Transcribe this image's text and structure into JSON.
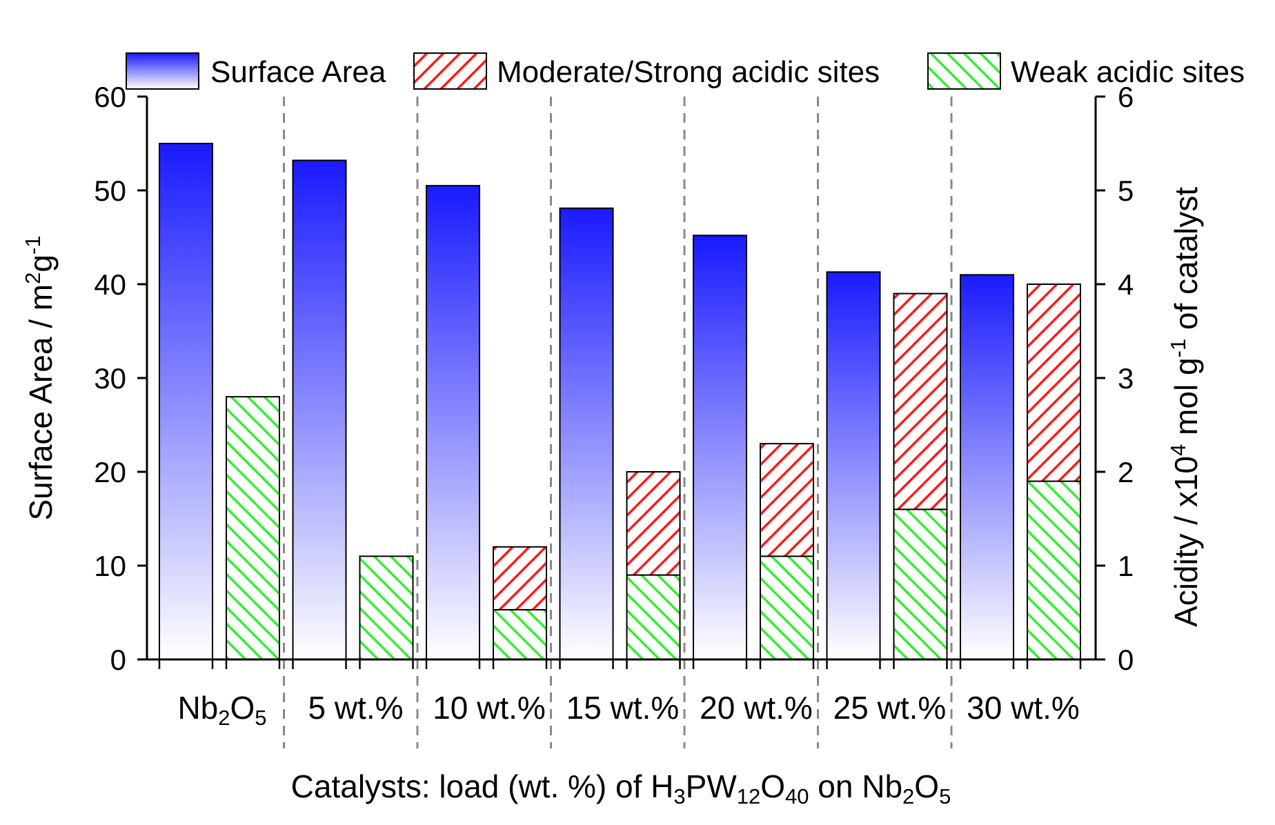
{
  "chart_data": {
    "type": "bar",
    "categories": [
      {
        "main": "Nb",
        "parts": [
          {
            "t": "Nb",
            "s": false
          },
          {
            "t": "2",
            "s": true
          },
          {
            "t": "O",
            "s": false
          },
          {
            "t": "5",
            "s": true
          }
        ]
      },
      {
        "main": "5 wt.%",
        "parts": [
          {
            "t": "5 wt.%",
            "s": false
          }
        ]
      },
      {
        "main": "10 wt.%",
        "parts": [
          {
            "t": "10 wt.%",
            "s": false
          }
        ]
      },
      {
        "main": "15 wt.%",
        "parts": [
          {
            "t": "15 wt.%",
            "s": false
          }
        ]
      },
      {
        "main": "20 wt.%",
        "parts": [
          {
            "t": "20 wt.%",
            "s": false
          }
        ]
      },
      {
        "main": "25 wt.%",
        "parts": [
          {
            "t": "25 wt.%",
            "s": false
          }
        ]
      },
      {
        "main": "30 wt.%",
        "parts": [
          {
            "t": "30 wt.%",
            "s": false
          }
        ]
      }
    ],
    "series": [
      {
        "name": "Surface Area",
        "axis": "left",
        "values": [
          55,
          53.2,
          50.5,
          48.1,
          45.2,
          41.3,
          41.0
        ]
      },
      {
        "name": "Weak acidic sites",
        "axis": "right",
        "stack_base": true,
        "values": [
          2.8,
          1.1,
          0.53,
          0.9,
          1.1,
          1.6,
          1.9
        ]
      },
      {
        "name": "Moderate/Strong acidic sites",
        "axis": "right",
        "stack_on": "Weak acidic sites",
        "values": [
          0,
          0,
          0.67,
          1.1,
          1.2,
          2.3,
          2.1
        ]
      }
    ],
    "legend": [
      {
        "name": "Surface Area",
        "swatch": "gradient"
      },
      {
        "name": "Moderate/Strong acidic sites",
        "swatch": "red-hatch"
      },
      {
        "name": "Weak acidic sites",
        "swatch": "green-hatch"
      }
    ],
    "legend_position": "top",
    "y_left": {
      "min": 0,
      "max": 60,
      "ticks": [
        "0",
        "10",
        "20",
        "30",
        "40",
        "50",
        "60"
      ],
      "title_parts": [
        {
          "t": "Surface Area / m",
          "s": ""
        },
        {
          "t": "2",
          "s": "sup"
        },
        {
          "t": "g",
          "s": ""
        },
        {
          "t": "-1",
          "s": "sup"
        }
      ]
    },
    "y_right": {
      "min": 0,
      "max": 6,
      "ticks": [
        "0",
        "1",
        "2",
        "3",
        "4",
        "5",
        "6"
      ],
      "title_parts": [
        {
          "t": "Acidity / x10",
          "s": ""
        },
        {
          "t": "4",
          "s": "sup"
        },
        {
          "t": " mol g",
          "s": ""
        },
        {
          "t": "-1",
          "s": "sup"
        },
        {
          "t": " of catalyst",
          "s": ""
        }
      ]
    },
    "xlabel_parts": [
      {
        "t": "Catalysts: load (wt. %) of H",
        "s": ""
      },
      {
        "t": "3",
        "s": "sub"
      },
      {
        "t": "PW",
        "s": ""
      },
      {
        "t": "12",
        "s": "sub"
      },
      {
        "t": "O",
        "s": ""
      },
      {
        "t": "40",
        "s": "sub"
      },
      {
        "t": " on Nb",
        "s": ""
      },
      {
        "t": "2",
        "s": "sub"
      },
      {
        "t": "O",
        "s": ""
      },
      {
        "t": "5",
        "s": "sub"
      }
    ],
    "colors": {
      "blue_top": "#1a1aff",
      "blue_bottom": "#ffffff",
      "red": "#ff1a1a",
      "green": "#33ee33",
      "divider": "#888888"
    }
  }
}
